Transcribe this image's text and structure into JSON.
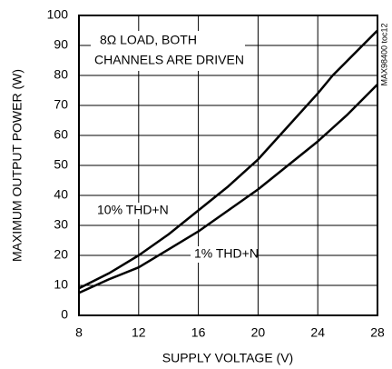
{
  "chart_data": {
    "type": "line",
    "x_label": "SUPPLY VOLTAGE (V)",
    "y_label": "MAXIMUM OUTPUT POWER (W)",
    "annotations": [
      "8Ω LOAD, BOTH",
      "CHANNELS ARE DRIVEN",
      "MAX98400 toc12"
    ],
    "x": [
      8,
      10,
      12,
      14,
      16,
      18,
      20,
      22,
      24,
      25,
      26,
      28
    ],
    "series": [
      {
        "name": "10% THD+N",
        "color": "#000000",
        "values": [
          9,
          14,
          20,
          27,
          35,
          43,
          52,
          63,
          74,
          80,
          85,
          95
        ]
      },
      {
        "name": "1% THD+N",
        "color": "#000000",
        "values": [
          7.5,
          12,
          16,
          22,
          28,
          35,
          42,
          50,
          58,
          62.5,
          67,
          77
        ]
      }
    ],
    "xlim": [
      8,
      28
    ],
    "xticks": [
      8,
      12,
      16,
      20,
      24,
      28
    ],
    "ylim": [
      0,
      100
    ],
    "yticks": [
      0,
      10,
      20,
      30,
      40,
      50,
      60,
      70,
      80,
      90,
      100
    ],
    "grid": true
  }
}
